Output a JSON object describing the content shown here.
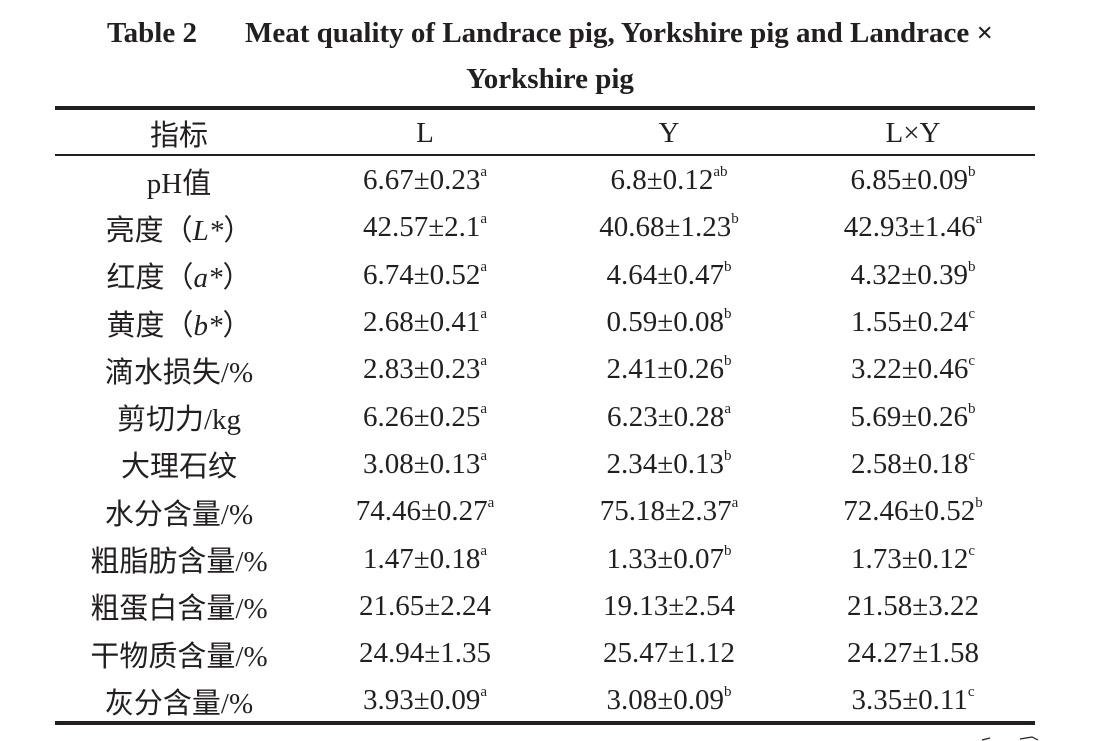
{
  "caption": {
    "label": "Table 2",
    "title_line1": "Meat quality of Landrace pig, Yorkshire pig and Landrace ×",
    "title_line2": "Yorkshire pig"
  },
  "table": {
    "headers": [
      "指标",
      "L",
      "Y",
      "L×Y"
    ],
    "rows": [
      {
        "metric": [
          "pH值"
        ],
        "L": [
          "6.67±0.23",
          "a"
        ],
        "Y": [
          "6.8±0.12",
          "ab"
        ],
        "LY": [
          "6.85±0.09",
          "b"
        ]
      },
      {
        "metric": [
          "亮度（",
          "L*",
          "）"
        ],
        "L": [
          "42.57±2.1",
          "a"
        ],
        "Y": [
          "40.68±1.23",
          "b"
        ],
        "LY": [
          "42.93±1.46",
          "a"
        ]
      },
      {
        "metric": [
          "红度（",
          "a*",
          "）"
        ],
        "L": [
          "6.74±0.52",
          "a"
        ],
        "Y": [
          "4.64±0.47",
          "b"
        ],
        "LY": [
          "4.32±0.39",
          "b"
        ]
      },
      {
        "metric": [
          "黄度（",
          "b*",
          "）"
        ],
        "L": [
          "2.68±0.41",
          "a"
        ],
        "Y": [
          "0.59±0.08",
          "b"
        ],
        "LY": [
          "1.55±0.24",
          "c"
        ]
      },
      {
        "metric": [
          "滴水损失/%"
        ],
        "L": [
          "2.83±0.23",
          "a"
        ],
        "Y": [
          "2.41±0.26",
          "b"
        ],
        "LY": [
          "3.22±0.46",
          "c"
        ]
      },
      {
        "metric": [
          "剪切力/kg"
        ],
        "L": [
          "6.26±0.25",
          "a"
        ],
        "Y": [
          "6.23±0.28",
          "a"
        ],
        "LY": [
          "5.69±0.26",
          "b"
        ]
      },
      {
        "metric": [
          "大理石纹"
        ],
        "L": [
          "3.08±0.13",
          "a"
        ],
        "Y": [
          "2.34±0.13",
          "b"
        ],
        "LY": [
          "2.58±0.18",
          "c"
        ]
      },
      {
        "metric": [
          "水分含量/%"
        ],
        "L": [
          "74.46±0.27",
          "a"
        ],
        "Y": [
          "75.18±2.37",
          "a"
        ],
        "LY": [
          "72.46±0.52",
          "b"
        ]
      },
      {
        "metric": [
          "粗脂肪含量/%"
        ],
        "L": [
          "1.47±0.18",
          "a"
        ],
        "Y": [
          "1.33±0.07",
          "b"
        ],
        "LY": [
          "1.73±0.12",
          "c"
        ]
      },
      {
        "metric": [
          "粗蛋白含量/%"
        ],
        "L": [
          "21.65±2.24",
          ""
        ],
        "Y": [
          "19.13±2.54",
          ""
        ],
        "LY": [
          "21.58±3.22",
          ""
        ]
      },
      {
        "metric": [
          "干物质含量/%"
        ],
        "L": [
          "24.94±1.35",
          ""
        ],
        "Y": [
          "25.47±1.12",
          ""
        ],
        "LY": [
          "24.27±1.58",
          ""
        ]
      },
      {
        "metric": [
          "灰分含量/%"
        ],
        "L": [
          "3.93±0.09",
          "a"
        ],
        "Y": [
          "3.08±0.09",
          "b"
        ],
        "LY": [
          "3.35±0.11",
          "c"
        ]
      }
    ]
  }
}
